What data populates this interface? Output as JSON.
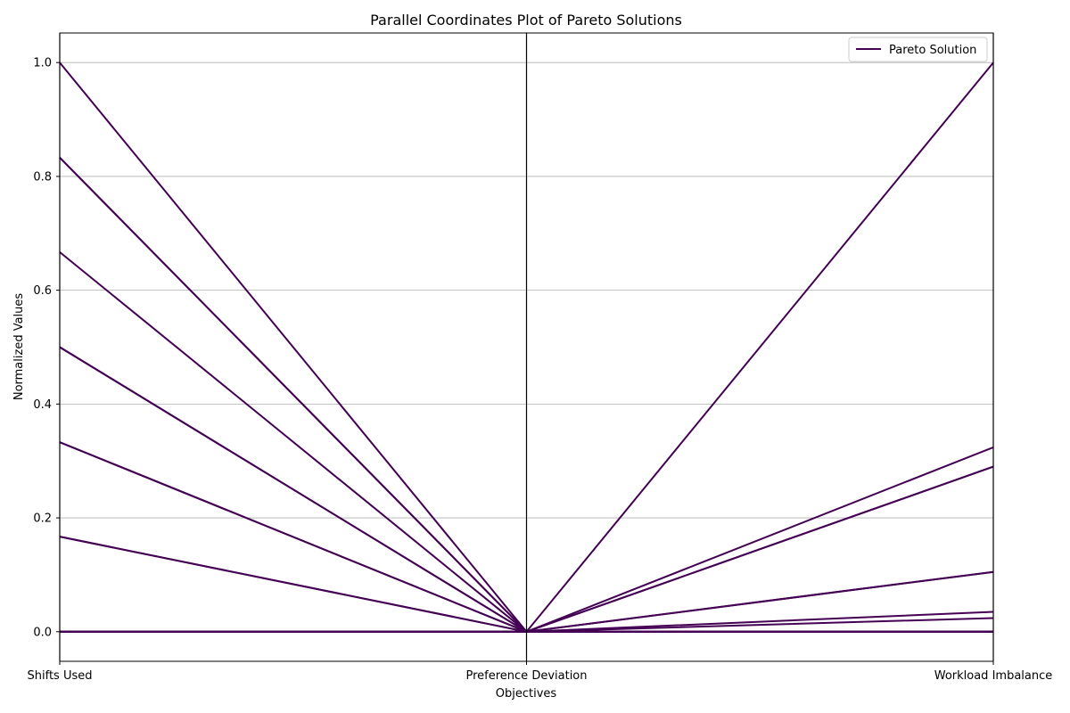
{
  "chart_data": {
    "type": "line",
    "title": "Parallel Coordinates Plot of Pareto Solutions",
    "xlabel": "Objectives",
    "ylabel": "Normalized Values",
    "categories": [
      "Shifts Used",
      "Preference Deviation",
      "Workload Imbalance"
    ],
    "ylim": [
      -0.052,
      1.052
    ],
    "yticks": [
      0.0,
      0.2,
      0.4,
      0.6,
      0.8,
      1.0
    ],
    "ytick_labels": [
      "0.0",
      "0.2",
      "0.4",
      "0.6",
      "0.8",
      "1.0"
    ],
    "grid": true,
    "legend": {
      "position": "top-right",
      "label": "Pareto Solution"
    },
    "line_color": "#440154",
    "series": [
      {
        "values": [
          1.0,
          0.0,
          0.0
        ]
      },
      {
        "values": [
          0.833,
          0.0,
          0.0
        ]
      },
      {
        "values": [
          0.833,
          0.0,
          0.0
        ]
      },
      {
        "values": [
          0.667,
          0.0,
          0.0
        ]
      },
      {
        "values": [
          0.5,
          0.0,
          0.0
        ]
      },
      {
        "values": [
          0.5,
          0.0,
          0.0
        ]
      },
      {
        "values": [
          0.333,
          0.0,
          0.0
        ]
      },
      {
        "values": [
          0.333,
          0.0,
          0.0
        ]
      },
      {
        "values": [
          0.167,
          0.0,
          0.0
        ]
      },
      {
        "values": [
          0.167,
          0.0,
          0.0
        ]
      },
      {
        "values": [
          0.0,
          0.0,
          1.0
        ]
      },
      {
        "values": [
          0.0,
          0.0,
          0.324
        ]
      },
      {
        "values": [
          0.0,
          0.0,
          0.29
        ]
      },
      {
        "values": [
          0.0,
          0.0,
          0.29
        ]
      },
      {
        "values": [
          0.0,
          0.0,
          0.105
        ]
      },
      {
        "values": [
          0.0,
          0.0,
          0.105
        ]
      },
      {
        "values": [
          0.0,
          0.0,
          0.035
        ]
      },
      {
        "values": [
          0.0,
          0.0,
          0.024
        ]
      },
      {
        "values": [
          0.0,
          0.0,
          0.0
        ]
      }
    ]
  }
}
